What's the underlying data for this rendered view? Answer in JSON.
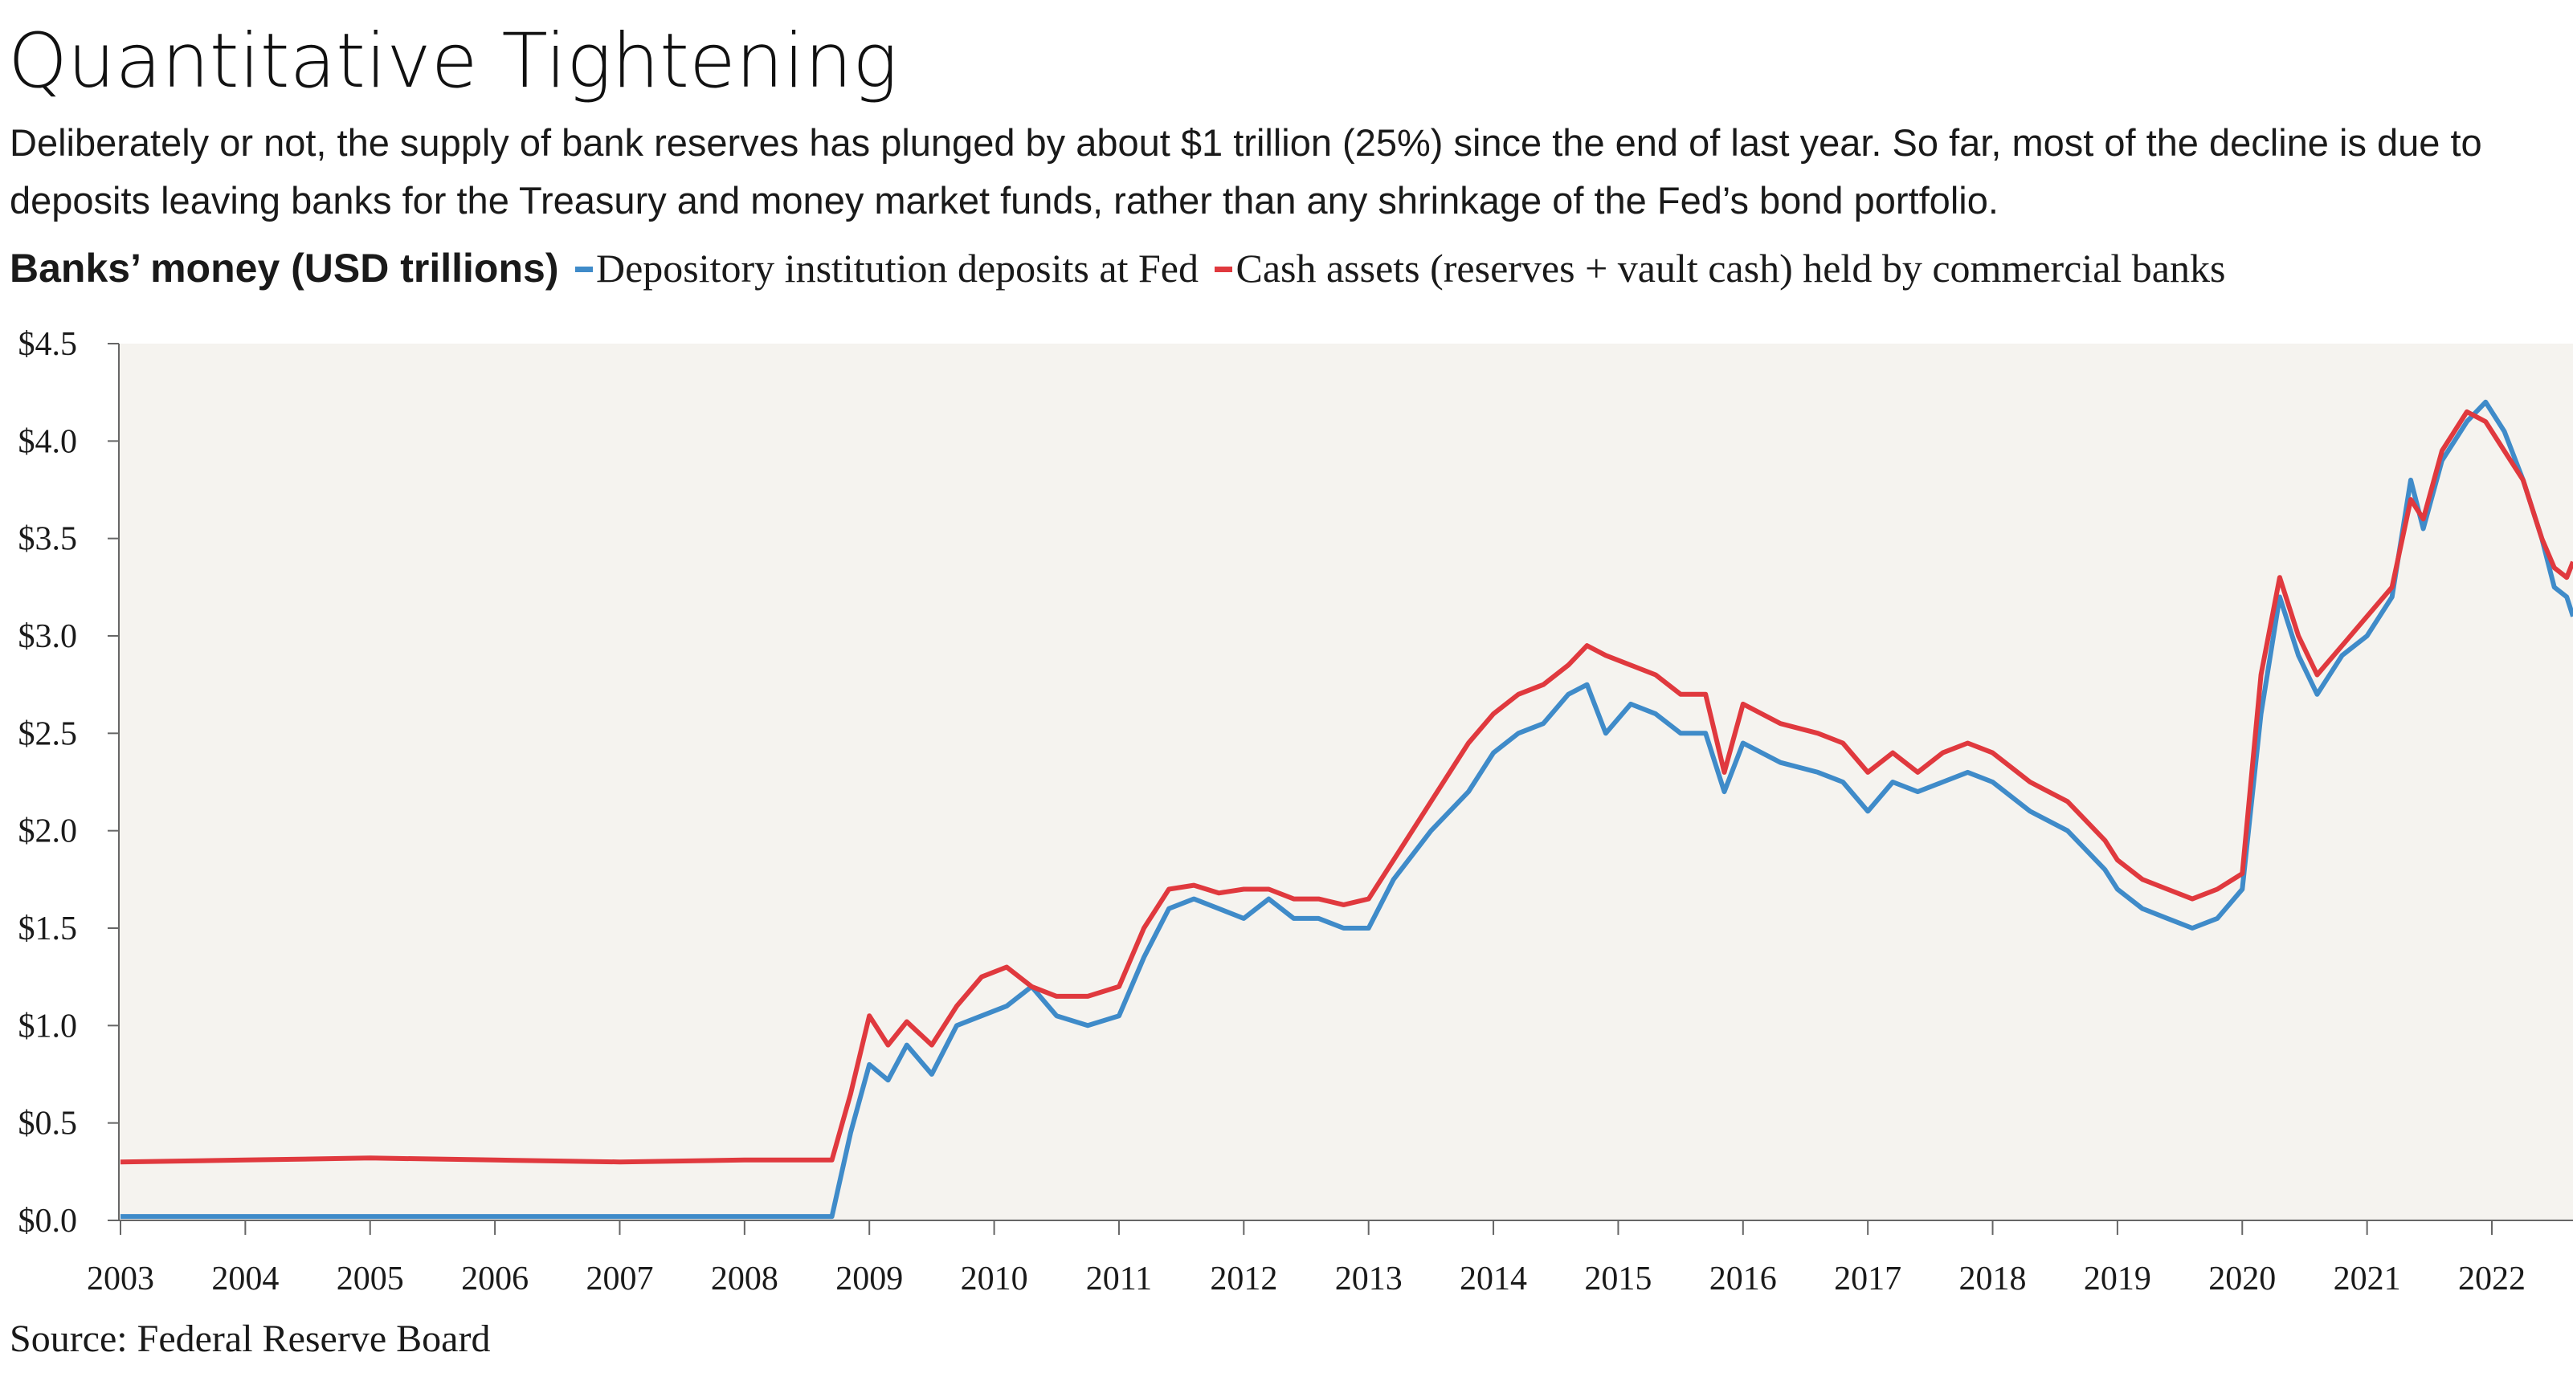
{
  "title": "Quantitative Tightening",
  "subtitle": "Deliberately or not, the supply of bank reserves has plunged by about $1 trillion (25%) since the end of last year. So far, most of the decline is due to deposits leaving banks for the Treasury and money market funds, rather than any shrinkage of the Fed’s bond portfolio.",
  "source": "Source: Federal Reserve Board",
  "colors": {
    "background_plot": "#f5f3ef",
    "blue": "#3f8bc9",
    "red": "#e0393e"
  },
  "chart_data": {
    "type": "line",
    "title": "Quantitative Tightening",
    "ylabel": "Banks’ money (USD trillions)",
    "xlabel": "",
    "ylim": [
      0,
      4.5
    ],
    "xlim": [
      2003.0,
      2022.65
    ],
    "yticks": [
      0,
      0.5,
      1.0,
      1.5,
      2.0,
      2.5,
      3.0,
      3.5,
      4.0,
      4.5
    ],
    "ytick_labels": [
      "$0.0",
      "$0.5",
      "$1.0",
      "$1.5",
      "$2.0",
      "$2.5",
      "$3.0",
      "$3.5",
      "$4.0",
      "$4.5"
    ],
    "xticks": [
      2003,
      2004,
      2005,
      2006,
      2007,
      2008,
      2009,
      2010,
      2011,
      2012,
      2013,
      2014,
      2015,
      2016,
      2017,
      2018,
      2019,
      2020,
      2021,
      2022
    ],
    "xtick_labels": [
      "2003",
      "2004",
      "2005",
      "2006",
      "2007",
      "2008",
      "2009",
      "2010",
      "2011",
      "2012",
      "2013",
      "2014",
      "2015",
      "2016",
      "2017",
      "2018",
      "2019",
      "2020",
      "2021",
      "2022"
    ],
    "grid": false,
    "legend_position": "top-left",
    "series": [
      {
        "name": "Depository institution deposits at Fed",
        "color": "#3f8bc9",
        "points": [
          [
            2003.0,
            0.02
          ],
          [
            2004.0,
            0.02
          ],
          [
            2005.0,
            0.02
          ],
          [
            2006.0,
            0.02
          ],
          [
            2007.0,
            0.02
          ],
          [
            2008.0,
            0.02
          ],
          [
            2008.7,
            0.02
          ],
          [
            2008.85,
            0.45
          ],
          [
            2009.0,
            0.8
          ],
          [
            2009.15,
            0.72
          ],
          [
            2009.3,
            0.9
          ],
          [
            2009.5,
            0.75
          ],
          [
            2009.7,
            1.0
          ],
          [
            2009.9,
            1.05
          ],
          [
            2010.1,
            1.1
          ],
          [
            2010.3,
            1.2
          ],
          [
            2010.5,
            1.05
          ],
          [
            2010.75,
            1.0
          ],
          [
            2011.0,
            1.05
          ],
          [
            2011.2,
            1.35
          ],
          [
            2011.4,
            1.6
          ],
          [
            2011.6,
            1.65
          ],
          [
            2011.8,
            1.6
          ],
          [
            2012.0,
            1.55
          ],
          [
            2012.2,
            1.65
          ],
          [
            2012.4,
            1.55
          ],
          [
            2012.6,
            1.55
          ],
          [
            2012.8,
            1.5
          ],
          [
            2013.0,
            1.5
          ],
          [
            2013.2,
            1.75
          ],
          [
            2013.5,
            2.0
          ],
          [
            2013.8,
            2.2
          ],
          [
            2014.0,
            2.4
          ],
          [
            2014.2,
            2.5
          ],
          [
            2014.4,
            2.55
          ],
          [
            2014.6,
            2.7
          ],
          [
            2014.75,
            2.75
          ],
          [
            2014.9,
            2.5
          ],
          [
            2015.1,
            2.65
          ],
          [
            2015.3,
            2.6
          ],
          [
            2015.5,
            2.5
          ],
          [
            2015.7,
            2.5
          ],
          [
            2015.85,
            2.2
          ],
          [
            2016.0,
            2.45
          ],
          [
            2016.3,
            2.35
          ],
          [
            2016.6,
            2.3
          ],
          [
            2016.8,
            2.25
          ],
          [
            2017.0,
            2.1
          ],
          [
            2017.2,
            2.25
          ],
          [
            2017.4,
            2.2
          ],
          [
            2017.6,
            2.25
          ],
          [
            2017.8,
            2.3
          ],
          [
            2018.0,
            2.25
          ],
          [
            2018.3,
            2.1
          ],
          [
            2018.6,
            2.0
          ],
          [
            2018.9,
            1.8
          ],
          [
            2019.0,
            1.7
          ],
          [
            2019.2,
            1.6
          ],
          [
            2019.4,
            1.55
          ],
          [
            2019.6,
            1.5
          ],
          [
            2019.8,
            1.55
          ],
          [
            2020.0,
            1.7
          ],
          [
            2020.15,
            2.6
          ],
          [
            2020.3,
            3.2
          ],
          [
            2020.45,
            2.9
          ],
          [
            2020.6,
            2.7
          ],
          [
            2020.8,
            2.9
          ],
          [
            2021.0,
            3.0
          ],
          [
            2021.2,
            3.2
          ],
          [
            2021.35,
            3.8
          ],
          [
            2021.45,
            3.55
          ],
          [
            2021.6,
            3.9
          ],
          [
            2021.8,
            4.1
          ],
          [
            2021.95,
            4.2
          ],
          [
            2022.1,
            4.05
          ],
          [
            2022.25,
            3.8
          ],
          [
            2022.4,
            3.5
          ],
          [
            2022.5,
            3.25
          ],
          [
            2022.6,
            3.2
          ],
          [
            2022.65,
            3.1
          ]
        ]
      },
      {
        "name": "Cash assets (reserves + vault cash) held by commercial banks",
        "color": "#e0393e",
        "points": [
          [
            2003.0,
            0.3
          ],
          [
            2004.0,
            0.31
          ],
          [
            2005.0,
            0.32
          ],
          [
            2006.0,
            0.31
          ],
          [
            2007.0,
            0.3
          ],
          [
            2008.0,
            0.31
          ],
          [
            2008.7,
            0.31
          ],
          [
            2008.85,
            0.65
          ],
          [
            2009.0,
            1.05
          ],
          [
            2009.15,
            0.9
          ],
          [
            2009.3,
            1.02
          ],
          [
            2009.5,
            0.9
          ],
          [
            2009.7,
            1.1
          ],
          [
            2009.9,
            1.25
          ],
          [
            2010.1,
            1.3
          ],
          [
            2010.3,
            1.2
          ],
          [
            2010.5,
            1.15
          ],
          [
            2010.75,
            1.15
          ],
          [
            2011.0,
            1.2
          ],
          [
            2011.2,
            1.5
          ],
          [
            2011.4,
            1.7
          ],
          [
            2011.6,
            1.72
          ],
          [
            2011.8,
            1.68
          ],
          [
            2012.0,
            1.7
          ],
          [
            2012.2,
            1.7
          ],
          [
            2012.4,
            1.65
          ],
          [
            2012.6,
            1.65
          ],
          [
            2012.8,
            1.62
          ],
          [
            2013.0,
            1.65
          ],
          [
            2013.2,
            1.85
          ],
          [
            2013.5,
            2.15
          ],
          [
            2013.8,
            2.45
          ],
          [
            2014.0,
            2.6
          ],
          [
            2014.2,
            2.7
          ],
          [
            2014.4,
            2.75
          ],
          [
            2014.6,
            2.85
          ],
          [
            2014.75,
            2.95
          ],
          [
            2014.9,
            2.9
          ],
          [
            2015.1,
            2.85
          ],
          [
            2015.3,
            2.8
          ],
          [
            2015.5,
            2.7
          ],
          [
            2015.7,
            2.7
          ],
          [
            2015.85,
            2.3
          ],
          [
            2016.0,
            2.65
          ],
          [
            2016.3,
            2.55
          ],
          [
            2016.6,
            2.5
          ],
          [
            2016.8,
            2.45
          ],
          [
            2017.0,
            2.3
          ],
          [
            2017.2,
            2.4
          ],
          [
            2017.4,
            2.3
          ],
          [
            2017.6,
            2.4
          ],
          [
            2017.8,
            2.45
          ],
          [
            2018.0,
            2.4
          ],
          [
            2018.3,
            2.25
          ],
          [
            2018.6,
            2.15
          ],
          [
            2018.9,
            1.95
          ],
          [
            2019.0,
            1.85
          ],
          [
            2019.2,
            1.75
          ],
          [
            2019.4,
            1.7
          ],
          [
            2019.6,
            1.65
          ],
          [
            2019.8,
            1.7
          ],
          [
            2020.0,
            1.78
          ],
          [
            2020.15,
            2.8
          ],
          [
            2020.3,
            3.3
          ],
          [
            2020.45,
            3.0
          ],
          [
            2020.6,
            2.8
          ],
          [
            2020.8,
            2.95
          ],
          [
            2021.0,
            3.1
          ],
          [
            2021.2,
            3.25
          ],
          [
            2021.35,
            3.7
          ],
          [
            2021.45,
            3.6
          ],
          [
            2021.6,
            3.95
          ],
          [
            2021.8,
            4.15
          ],
          [
            2021.95,
            4.1
          ],
          [
            2022.1,
            3.95
          ],
          [
            2022.25,
            3.8
          ],
          [
            2022.4,
            3.5
          ],
          [
            2022.5,
            3.35
          ],
          [
            2022.6,
            3.3
          ],
          [
            2022.65,
            3.38
          ]
        ]
      }
    ]
  }
}
